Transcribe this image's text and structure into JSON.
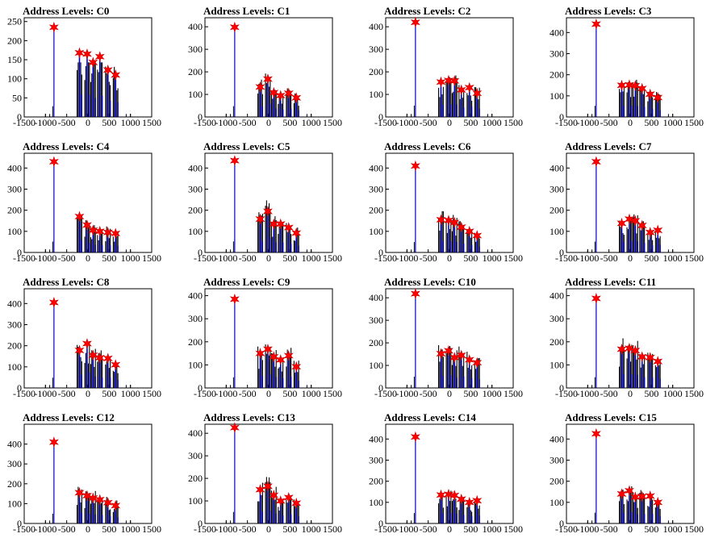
{
  "figure": {
    "panel_title_prefix": "Address Levels: "
  },
  "chart_data": [
    {
      "type": "histogram",
      "title": "Address Levels: C0",
      "xlim": [
        -1500,
        1500
      ],
      "xticks": [
        -1500,
        -1000,
        -500,
        0,
        500,
        1000,
        1500
      ],
      "ylim": [
        0,
        260
      ],
      "yticks": [
        0,
        50,
        100,
        150,
        200,
        250
      ],
      "line_color": "#0000cc",
      "marker_color": "#ff0000",
      "peaks": [
        {
          "x": -800,
          "y": 235
        },
        {
          "x": -200,
          "y": 168
        },
        {
          "x": -20,
          "y": 165
        },
        {
          "x": 120,
          "y": 143
        },
        {
          "x": 280,
          "y": 158
        },
        {
          "x": 470,
          "y": 123
        },
        {
          "x": 650,
          "y": 110
        }
      ]
    },
    {
      "type": "histogram",
      "title": "Address Levels: C1",
      "xlim": [
        -1500,
        1500
      ],
      "xticks": [
        -1500,
        -1000,
        -500,
        0,
        500,
        1000,
        1500
      ],
      "ylim": [
        0,
        440
      ],
      "yticks": [
        0,
        100,
        200,
        300,
        400
      ],
      "line_color": "#0000cc",
      "marker_color": "#ff0000",
      "peaks": [
        {
          "x": -800,
          "y": 398
        },
        {
          "x": -200,
          "y": 133
        },
        {
          "x": -20,
          "y": 168
        },
        {
          "x": 120,
          "y": 108
        },
        {
          "x": 280,
          "y": 95
        },
        {
          "x": 470,
          "y": 105
        },
        {
          "x": 650,
          "y": 85
        }
      ]
    },
    {
      "type": "histogram",
      "title": "Address Levels: C2",
      "xlim": [
        -1500,
        1500
      ],
      "xticks": [
        -1500,
        -1000,
        -500,
        0,
        500,
        1000,
        1500
      ],
      "ylim": [
        0,
        440
      ],
      "yticks": [
        0,
        100,
        200,
        300,
        400
      ],
      "line_color": "#0000cc",
      "marker_color": "#ff0000",
      "peaks": [
        {
          "x": -800,
          "y": 420
        },
        {
          "x": -200,
          "y": 155
        },
        {
          "x": -20,
          "y": 162
        },
        {
          "x": 120,
          "y": 160
        },
        {
          "x": 280,
          "y": 120
        },
        {
          "x": 470,
          "y": 130
        },
        {
          "x": 650,
          "y": 105
        }
      ]
    },
    {
      "type": "histogram",
      "title": "Address Levels: C3",
      "xlim": [
        -1500,
        1500
      ],
      "xticks": [
        -1500,
        -1000,
        -500,
        0,
        500,
        1000,
        1500
      ],
      "ylim": [
        0,
        470
      ],
      "yticks": [
        0,
        100,
        200,
        300,
        400
      ],
      "line_color": "#0000cc",
      "marker_color": "#ff0000",
      "peaks": [
        {
          "x": -800,
          "y": 440
        },
        {
          "x": -200,
          "y": 150
        },
        {
          "x": -20,
          "y": 152
        },
        {
          "x": 120,
          "y": 148
        },
        {
          "x": 280,
          "y": 135
        },
        {
          "x": 470,
          "y": 108
        },
        {
          "x": 650,
          "y": 92
        }
      ]
    },
    {
      "type": "histogram",
      "title": "Address Levels: C4",
      "xlim": [
        -1500,
        1500
      ],
      "xticks": [
        -1500,
        -1000,
        -500,
        0,
        500,
        1000,
        1500
      ],
      "ylim": [
        0,
        470
      ],
      "yticks": [
        0,
        100,
        200,
        300,
        400
      ],
      "line_color": "#0000cc",
      "marker_color": "#ff0000",
      "peaks": [
        {
          "x": -800,
          "y": 430
        },
        {
          "x": -200,
          "y": 170
        },
        {
          "x": -20,
          "y": 130
        },
        {
          "x": 120,
          "y": 105
        },
        {
          "x": 280,
          "y": 100
        },
        {
          "x": 470,
          "y": 95
        },
        {
          "x": 650,
          "y": 90
        }
      ]
    },
    {
      "type": "histogram",
      "title": "Address Levels: C5",
      "xlim": [
        -1500,
        1500
      ],
      "xticks": [
        -1500,
        -1000,
        -500,
        0,
        500,
        1000,
        1500
      ],
      "ylim": [
        0,
        470
      ],
      "yticks": [
        0,
        100,
        200,
        300,
        400
      ],
      "line_color": "#0000cc",
      "marker_color": "#ff0000",
      "peaks": [
        {
          "x": -800,
          "y": 435
        },
        {
          "x": -200,
          "y": 158
        },
        {
          "x": -20,
          "y": 195
        },
        {
          "x": 120,
          "y": 135
        },
        {
          "x": 280,
          "y": 135
        },
        {
          "x": 470,
          "y": 118
        },
        {
          "x": 650,
          "y": 92
        }
      ]
    },
    {
      "type": "histogram",
      "title": "Address Levels: C6",
      "xlim": [
        -1500,
        1500
      ],
      "xticks": [
        -1500,
        -1000,
        -500,
        0,
        500,
        1000,
        1500
      ],
      "ylim": [
        0,
        470
      ],
      "yticks": [
        0,
        100,
        200,
        300,
        400
      ],
      "line_color": "#0000cc",
      "marker_color": "#ff0000",
      "peaks": [
        {
          "x": -800,
          "y": 410
        },
        {
          "x": -200,
          "y": 155
        },
        {
          "x": -20,
          "y": 152
        },
        {
          "x": 120,
          "y": 142
        },
        {
          "x": 280,
          "y": 120
        },
        {
          "x": 470,
          "y": 100
        },
        {
          "x": 650,
          "y": 80
        }
      ]
    },
    {
      "type": "histogram",
      "title": "Address Levels: C7",
      "xlim": [
        -1500,
        1500
      ],
      "xticks": [
        -1500,
        -1000,
        -500,
        0,
        500,
        1000,
        1500
      ],
      "ylim": [
        0,
        470
      ],
      "yticks": [
        0,
        100,
        200,
        300,
        400
      ],
      "line_color": "#0000cc",
      "marker_color": "#ff0000",
      "peaks": [
        {
          "x": -800,
          "y": 430
        },
        {
          "x": -200,
          "y": 138
        },
        {
          "x": -20,
          "y": 158
        },
        {
          "x": 120,
          "y": 150
        },
        {
          "x": 280,
          "y": 128
        },
        {
          "x": 470,
          "y": 95
        },
        {
          "x": 650,
          "y": 105
        }
      ]
    },
    {
      "type": "histogram",
      "title": "Address Levels: C8",
      "xlim": [
        -1500,
        1500
      ],
      "xticks": [
        -1500,
        -1000,
        -500,
        0,
        500,
        1000,
        1500
      ],
      "ylim": [
        0,
        470
      ],
      "yticks": [
        0,
        100,
        200,
        300,
        400
      ],
      "line_color": "#0000cc",
      "marker_color": "#ff0000",
      "peaks": [
        {
          "x": -800,
          "y": 405
        },
        {
          "x": -200,
          "y": 178
        },
        {
          "x": -20,
          "y": 210
        },
        {
          "x": 120,
          "y": 155
        },
        {
          "x": 280,
          "y": 143
        },
        {
          "x": 470,
          "y": 140
        },
        {
          "x": 650,
          "y": 110
        }
      ]
    },
    {
      "type": "histogram",
      "title": "Address Levels: C9",
      "xlim": [
        -1500,
        1500
      ],
      "xticks": [
        -1500,
        -1000,
        -500,
        0,
        500,
        1000,
        1500
      ],
      "ylim": [
        0,
        430
      ],
      "yticks": [
        0,
        100,
        200,
        300,
        400
      ],
      "line_color": "#0000cc",
      "marker_color": "#ff0000",
      "peaks": [
        {
          "x": -800,
          "y": 385
        },
        {
          "x": -200,
          "y": 150
        },
        {
          "x": -20,
          "y": 168
        },
        {
          "x": 120,
          "y": 135
        },
        {
          "x": 280,
          "y": 122
        },
        {
          "x": 470,
          "y": 140
        },
        {
          "x": 650,
          "y": 92
        }
      ]
    },
    {
      "type": "histogram",
      "title": "Address Levels: C10",
      "xlim": [
        -1500,
        1500
      ],
      "xticks": [
        -1500,
        -1000,
        -500,
        0,
        500,
        1000,
        1500
      ],
      "ylim": [
        0,
        440
      ],
      "yticks": [
        0,
        100,
        200,
        300,
        400
      ],
      "line_color": "#0000cc",
      "marker_color": "#ff0000",
      "peaks": [
        {
          "x": -800,
          "y": 418
        },
        {
          "x": -200,
          "y": 152
        },
        {
          "x": -20,
          "y": 165
        },
        {
          "x": 120,
          "y": 135
        },
        {
          "x": 280,
          "y": 145
        },
        {
          "x": 470,
          "y": 125
        },
        {
          "x": 650,
          "y": 112
        }
      ]
    },
    {
      "type": "histogram",
      "title": "Address Levels: C11",
      "xlim": [
        -1500,
        1500
      ],
      "xticks": [
        -1500,
        -1000,
        -500,
        0,
        500,
        1000,
        1500
      ],
      "ylim": [
        0,
        430
      ],
      "yticks": [
        0,
        100,
        200,
        300,
        400
      ],
      "line_color": "#0000cc",
      "marker_color": "#ff0000",
      "peaks": [
        {
          "x": -800,
          "y": 388
        },
        {
          "x": -200,
          "y": 168
        },
        {
          "x": -20,
          "y": 172
        },
        {
          "x": 120,
          "y": 162
        },
        {
          "x": 280,
          "y": 135
        },
        {
          "x": 470,
          "y": 132
        },
        {
          "x": 650,
          "y": 115
        }
      ]
    },
    {
      "type": "histogram",
      "title": "Address Levels: C12",
      "xlim": [
        -1500,
        1500
      ],
      "xticks": [
        -1500,
        -1000,
        -500,
        0,
        500,
        1000,
        1500
      ],
      "ylim": [
        0,
        500
      ],
      "yticks": [
        0,
        100,
        200,
        300,
        400
      ],
      "line_color": "#0000cc",
      "marker_color": "#ff0000",
      "peaks": [
        {
          "x": -800,
          "y": 410
        },
        {
          "x": -200,
          "y": 155
        },
        {
          "x": -20,
          "y": 140
        },
        {
          "x": 120,
          "y": 128
        },
        {
          "x": 280,
          "y": 120
        },
        {
          "x": 470,
          "y": 105
        },
        {
          "x": 650,
          "y": 90
        }
      ]
    },
    {
      "type": "histogram",
      "title": "Address Levels: C13",
      "xlim": [
        -1500,
        1500
      ],
      "xticks": [
        -1500,
        -1000,
        -500,
        0,
        500,
        1000,
        1500
      ],
      "ylim": [
        0,
        440
      ],
      "yticks": [
        0,
        100,
        200,
        300,
        400
      ],
      "line_color": "#0000cc",
      "marker_color": "#ff0000",
      "peaks": [
        {
          "x": -800,
          "y": 425
        },
        {
          "x": -200,
          "y": 150
        },
        {
          "x": -20,
          "y": 165
        },
        {
          "x": 120,
          "y": 125
        },
        {
          "x": 280,
          "y": 100
        },
        {
          "x": 470,
          "y": 115
        },
        {
          "x": 650,
          "y": 90
        }
      ]
    },
    {
      "type": "histogram",
      "title": "Address Levels: C14",
      "xlim": [
        -1500,
        1500
      ],
      "xticks": [
        -1500,
        -1000,
        -500,
        0,
        500,
        1000,
        1500
      ],
      "ylim": [
        0,
        470
      ],
      "yticks": [
        0,
        100,
        200,
        300,
        400
      ],
      "line_color": "#0000cc",
      "marker_color": "#ff0000",
      "peaks": [
        {
          "x": -800,
          "y": 410
        },
        {
          "x": -200,
          "y": 135
        },
        {
          "x": -20,
          "y": 138
        },
        {
          "x": 120,
          "y": 133
        },
        {
          "x": 280,
          "y": 115
        },
        {
          "x": 470,
          "y": 100
        },
        {
          "x": 650,
          "y": 108
        }
      ]
    },
    {
      "type": "histogram",
      "title": "Address Levels: C15",
      "xlim": [
        -1500,
        1500
      ],
      "xticks": [
        -1500,
        -1000,
        -500,
        0,
        500,
        1000,
        1500
      ],
      "ylim": [
        0,
        470
      ],
      "yticks": [
        0,
        100,
        200,
        300,
        400
      ],
      "line_color": "#0000cc",
      "marker_color": "#ff0000",
      "peaks": [
        {
          "x": -800,
          "y": 425
        },
        {
          "x": -200,
          "y": 140
        },
        {
          "x": -20,
          "y": 155
        },
        {
          "x": 120,
          "y": 125
        },
        {
          "x": 280,
          "y": 128
        },
        {
          "x": 470,
          "y": 130
        },
        {
          "x": 650,
          "y": 100
        }
      ]
    }
  ]
}
